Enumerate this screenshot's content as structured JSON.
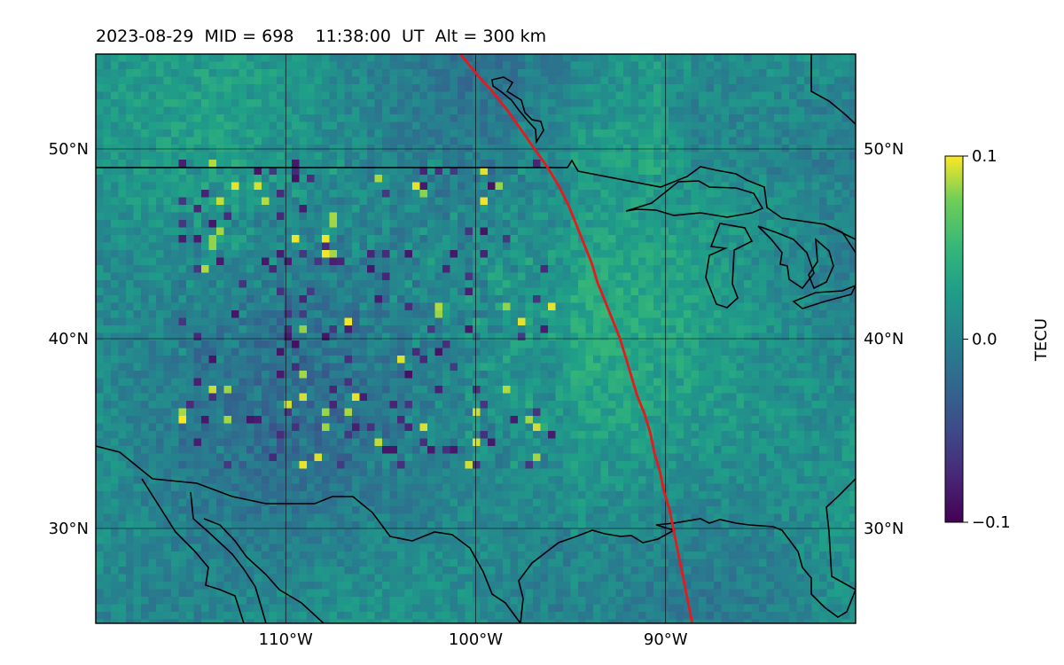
{
  "title": {
    "date": "2023-08-29",
    "mid": "MID = 698",
    "time": "11:38:00  UT",
    "alt": "Alt = 300 km"
  },
  "map": {
    "lon_range": [
      -120,
      -80
    ],
    "lat_range": [
      25,
      55
    ],
    "lon_ticks": [
      {
        "value": -110,
        "label": "110°W"
      },
      {
        "value": -100,
        "label": "100°W"
      },
      {
        "value": -90,
        "label": "90°W"
      }
    ],
    "lat_ticks": [
      {
        "value": 50,
        "label": "50°N"
      },
      {
        "value": 40,
        "label": "40°N"
      },
      {
        "value": 30,
        "label": "30°N"
      }
    ],
    "gridlines": true,
    "track_color": "#e41a1c",
    "track": [
      [
        -100.8,
        55
      ],
      [
        -100.0,
        54
      ],
      [
        -99.1,
        53
      ],
      [
        -98.3,
        52
      ],
      [
        -97.6,
        51
      ],
      [
        -96.9,
        50
      ],
      [
        -96.2,
        49
      ],
      [
        -95.6,
        48
      ],
      [
        -95.1,
        47
      ],
      [
        -94.7,
        46
      ],
      [
        -94.3,
        45
      ],
      [
        -93.9,
        44
      ],
      [
        -93.6,
        43
      ],
      [
        -93.2,
        42
      ],
      [
        -92.8,
        41
      ],
      [
        -92.4,
        40
      ],
      [
        -92.1,
        39
      ],
      [
        -91.8,
        38
      ],
      [
        -91.5,
        37
      ],
      [
        -91.1,
        36
      ],
      [
        -90.8,
        35
      ],
      [
        -90.6,
        34
      ],
      [
        -90.3,
        33
      ],
      [
        -90.1,
        32
      ],
      [
        -89.8,
        31
      ],
      [
        -89.6,
        30
      ],
      [
        -89.4,
        29
      ],
      [
        -89.2,
        28
      ],
      [
        -89.0,
        27
      ],
      [
        -88.8,
        26
      ],
      [
        -88.6,
        25
      ]
    ]
  },
  "colorbar": {
    "label": "TECU",
    "min": -0.1,
    "max": 0.1,
    "ticks": [
      {
        "value": 0.1,
        "label": "0.1"
      },
      {
        "value": 0.0,
        "label": "0.0"
      },
      {
        "value": -0.1,
        "label": "−0.1"
      }
    ],
    "colormap": "viridis"
  }
}
